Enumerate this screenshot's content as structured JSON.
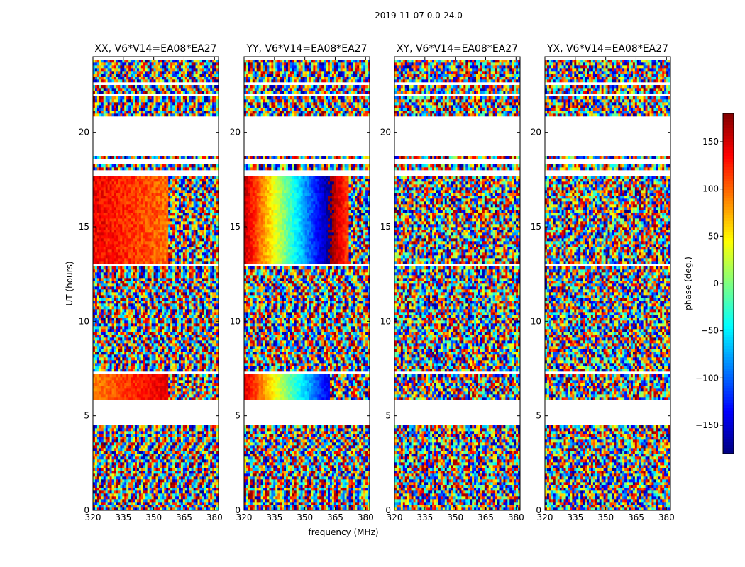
{
  "figure": {
    "suptitle": "2019-11-07 0.0-24.0",
    "xlabel": "frequency (MHz)",
    "ylabel": "UT (hours)",
    "colorbar_label": "phase (deg.)"
  },
  "chart_data": [
    {
      "type": "heatmap",
      "title": "XX, V6*V14=EA08*EA27",
      "xlim": [
        320,
        382
      ],
      "ylim": [
        0,
        24
      ],
      "xticks": [
        320,
        335,
        350,
        365,
        380
      ],
      "yticks": [
        0,
        5,
        10,
        15,
        20
      ],
      "field": "phase",
      "pattern": "smooth"
    },
    {
      "type": "heatmap",
      "title": "YY, V6*V14=EA08*EA27",
      "xlim": [
        320,
        382
      ],
      "ylim": [
        0,
        24
      ],
      "xticks": [
        320,
        335,
        350,
        365,
        380
      ],
      "yticks": [
        0,
        5,
        10,
        15,
        20
      ],
      "field": "phase",
      "pattern": "smooth-blue"
    },
    {
      "type": "heatmap",
      "title": "XY, V6*V14=EA08*EA27",
      "xlim": [
        320,
        382
      ],
      "ylim": [
        0,
        24
      ],
      "xticks": [
        320,
        335,
        350,
        365,
        380
      ],
      "yticks": [
        0,
        5,
        10,
        15,
        20
      ],
      "field": "phase",
      "pattern": "noisy"
    },
    {
      "type": "heatmap",
      "title": "YX, V6*V14=EA08*EA27",
      "xlim": [
        320,
        382
      ],
      "ylim": [
        0,
        24
      ],
      "xticks": [
        320,
        335,
        350,
        365,
        380
      ],
      "yticks": [
        0,
        5,
        10,
        15,
        20
      ],
      "field": "phase",
      "pattern": "noisy"
    }
  ],
  "colorbar": {
    "range": [
      -180,
      180
    ],
    "ticks": [
      150,
      100,
      50,
      0,
      -50,
      -100,
      -150
    ],
    "tick_labels": [
      "150",
      "100",
      "50",
      "0",
      "−50",
      "−100",
      "−150"
    ],
    "colormap": "jet"
  },
  "gaps_hours": [
    [
      4.5,
      5.9
    ],
    [
      7.2,
      7.4
    ],
    [
      12.9,
      13.1
    ],
    [
      17.7,
      18.0
    ],
    [
      18.25,
      18.6
    ],
    [
      18.8,
      20.9
    ],
    [
      21.95,
      22.1
    ],
    [
      22.5,
      22.7
    ],
    [
      23.8,
      24.0
    ]
  ]
}
